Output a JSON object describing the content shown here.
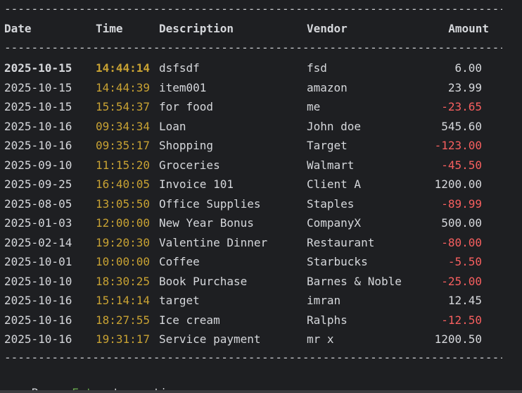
{
  "separator": "------------------------------------------------------------------------------------------------",
  "headers": {
    "date": "Date",
    "time": "Time",
    "description": "Description",
    "vendor": "Vendor",
    "amount": "Amount"
  },
  "rows": [
    {
      "date": "2025-10-15",
      "time": "14:44:14",
      "description": "dsfsdf",
      "vendor": "fsd",
      "amount": "6.00"
    },
    {
      "date": "2025-10-15",
      "time": "14:44:39",
      "description": "item001",
      "vendor": "amazon",
      "amount": "23.99"
    },
    {
      "date": "2025-10-15",
      "time": "15:54:37",
      "description": "for food",
      "vendor": "me",
      "amount": "-23.65"
    },
    {
      "date": "2025-10-16",
      "time": "09:34:34",
      "description": "Loan",
      "vendor": "John doe",
      "amount": "545.60"
    },
    {
      "date": "2025-10-16",
      "time": "09:35:17",
      "description": "Shopping",
      "vendor": "Target",
      "amount": "-123.00"
    },
    {
      "date": "2025-09-10",
      "time": "11:15:20",
      "description": "Groceries",
      "vendor": "Walmart",
      "amount": "-45.50"
    },
    {
      "date": "2025-09-25",
      "time": "16:40:05",
      "description": "Invoice 101",
      "vendor": "Client A",
      "amount": "1200.00"
    },
    {
      "date": "2025-08-05",
      "time": "13:05:50",
      "description": "Office Supplies",
      "vendor": "Staples",
      "amount": "-89.99"
    },
    {
      "date": "2025-01-03",
      "time": "12:00:00",
      "description": "New Year Bonus",
      "vendor": "CompanyX",
      "amount": "500.00"
    },
    {
      "date": "2025-02-14",
      "time": "19:20:30",
      "description": "Valentine Dinner",
      "vendor": "Restaurant",
      "amount": "-80.00"
    },
    {
      "date": "2025-10-01",
      "time": "10:00:00",
      "description": "Coffee",
      "vendor": "Starbucks",
      "amount": "-5.50"
    },
    {
      "date": "2025-10-10",
      "time": "18:30:25",
      "description": "Book Purchase",
      "vendor": "Barnes & Noble",
      "amount": "-25.00"
    },
    {
      "date": "2025-10-16",
      "time": "15:14:14",
      "description": "target",
      "vendor": "imran",
      "amount": "12.45"
    },
    {
      "date": "2025-10-16",
      "time": "18:27:55",
      "description": "Ice cream",
      "vendor": "Ralphs",
      "amount": "-12.50"
    },
    {
      "date": "2025-10-16",
      "time": "19:31:17",
      "description": "Service payment",
      "vendor": "mr x",
      "amount": "1200.50"
    }
  ],
  "prompt": {
    "before": "Press ",
    "key": "Enter",
    "after": " to continue"
  },
  "colors": {
    "background": "#1e1f22",
    "text": "#d6d8dc",
    "time": "#c8a233",
    "negative": "#f75f5f",
    "key": "#6aa84f"
  }
}
